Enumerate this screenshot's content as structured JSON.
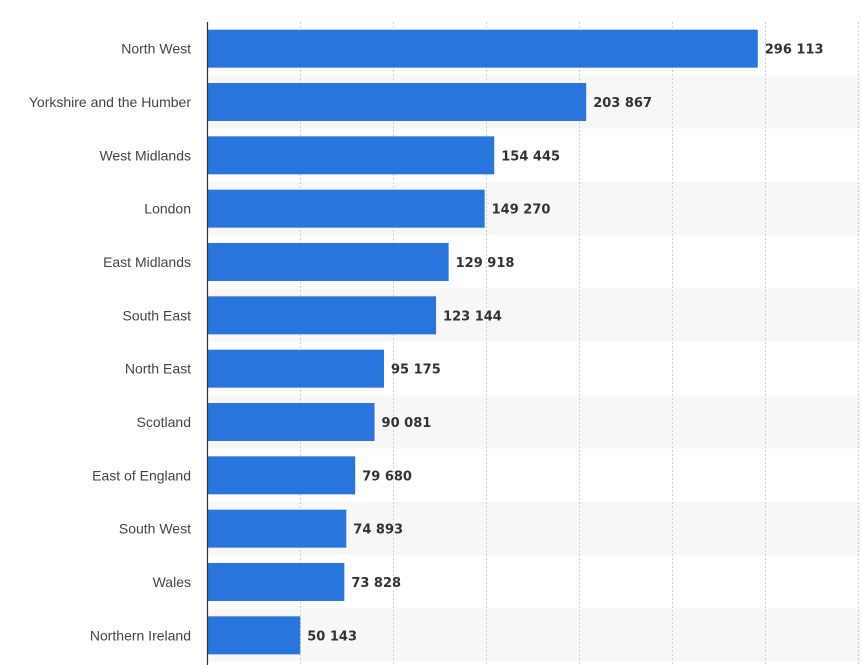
{
  "chart_data": {
    "type": "bar",
    "orientation": "horizontal",
    "title": "",
    "xlabel": "",
    "ylabel": "",
    "categories": [
      "North West",
      "Yorkshire and the Humber",
      "West Midlands",
      "London",
      "East Midlands",
      "South East",
      "North East",
      "Scotland",
      "East of England",
      "South West",
      "Wales",
      "Northern Ireland"
    ],
    "values": [
      296113,
      203867,
      154445,
      149270,
      129918,
      123144,
      95175,
      90081,
      79680,
      74893,
      73828,
      50143
    ],
    "value_labels": [
      "296 113",
      "203 867",
      "154 445",
      "149 270",
      "129 918",
      "123 144",
      "95 175",
      "90 081",
      "79 680",
      "74 893",
      "73 828",
      "50 143"
    ],
    "xlim": [
      0,
      350000
    ],
    "x_gridline_step": 50000,
    "grid": true,
    "legend": "none",
    "colors": {
      "bar": "#2876dd",
      "band": "#f7f7f7",
      "grid": "#d0d0d0",
      "axis": "#333333"
    }
  }
}
